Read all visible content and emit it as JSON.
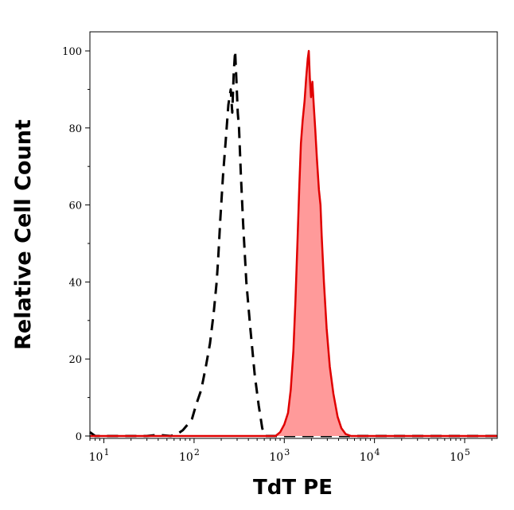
{
  "chart_data": {
    "type": "area",
    "xlabel": "TdT PE",
    "ylabel": "Relative Cell Count",
    "xscale": "log",
    "xlim": [
      7,
      230000
    ],
    "ylim": [
      0,
      100
    ],
    "grid": false,
    "legend": "none",
    "y_ticks": [
      0,
      20,
      40,
      60,
      80,
      100
    ],
    "x_ticks": [
      {
        "value": 10,
        "base": "10",
        "exp": "1"
      },
      {
        "value": 100,
        "base": "10",
        "exp": "2"
      },
      {
        "value": 1000,
        "base": "10",
        "exp": "3"
      },
      {
        "value": 10000,
        "base": "10",
        "exp": "4"
      },
      {
        "value": 100000,
        "base": "10",
        "exp": "5"
      }
    ],
    "series": [
      {
        "style": "dashed",
        "color": "#000000",
        "filled": false,
        "points": [
          [
            7,
            1
          ],
          [
            8,
            0
          ],
          [
            30,
            0
          ],
          [
            40,
            0.3
          ],
          [
            55,
            0
          ],
          [
            65,
            0.5
          ],
          [
            75,
            1.5
          ],
          [
            85,
            3
          ],
          [
            95,
            4.5
          ],
          [
            105,
            8
          ],
          [
            120,
            12
          ],
          [
            135,
            18
          ],
          [
            150,
            24
          ],
          [
            165,
            32
          ],
          [
            178,
            40
          ],
          [
            185,
            46
          ],
          [
            195,
            56
          ],
          [
            210,
            68
          ],
          [
            225,
            77
          ],
          [
            240,
            86
          ],
          [
            255,
            90
          ],
          [
            265,
            84
          ],
          [
            275,
            94
          ],
          [
            285,
            100
          ],
          [
            295,
            92
          ],
          [
            305,
            84
          ],
          [
            315,
            80
          ],
          [
            330,
            68
          ],
          [
            350,
            55
          ],
          [
            380,
            40
          ],
          [
            420,
            28
          ],
          [
            470,
            16
          ],
          [
            520,
            8
          ],
          [
            570,
            2
          ],
          [
            620,
            0
          ],
          [
            1000,
            0
          ],
          [
            2000,
            0
          ],
          [
            230000,
            0
          ]
        ]
      },
      {
        "style": "solid",
        "color": "#e00000",
        "fill": "#ff9a9a",
        "filled": true,
        "points": [
          [
            7,
            0
          ],
          [
            800,
            0
          ],
          [
            900,
            1
          ],
          [
            1000,
            3
          ],
          [
            1100,
            6
          ],
          [
            1180,
            12
          ],
          [
            1260,
            22
          ],
          [
            1330,
            35
          ],
          [
            1400,
            50
          ],
          [
            1470,
            65
          ],
          [
            1530,
            76
          ],
          [
            1600,
            82
          ],
          [
            1680,
            87
          ],
          [
            1750,
            93
          ],
          [
            1820,
            98
          ],
          [
            1870,
            100
          ],
          [
            1920,
            93
          ],
          [
            1980,
            88
          ],
          [
            2050,
            92
          ],
          [
            2120,
            86
          ],
          [
            2200,
            80
          ],
          [
            2300,
            72
          ],
          [
            2420,
            64
          ],
          [
            2520,
            60
          ],
          [
            2600,
            52
          ],
          [
            2750,
            40
          ],
          [
            2950,
            28
          ],
          [
            3200,
            18
          ],
          [
            3500,
            11
          ],
          [
            3900,
            5
          ],
          [
            4300,
            2
          ],
          [
            4800,
            0.5
          ],
          [
            5500,
            0
          ],
          [
            230000,
            0
          ]
        ]
      }
    ]
  }
}
